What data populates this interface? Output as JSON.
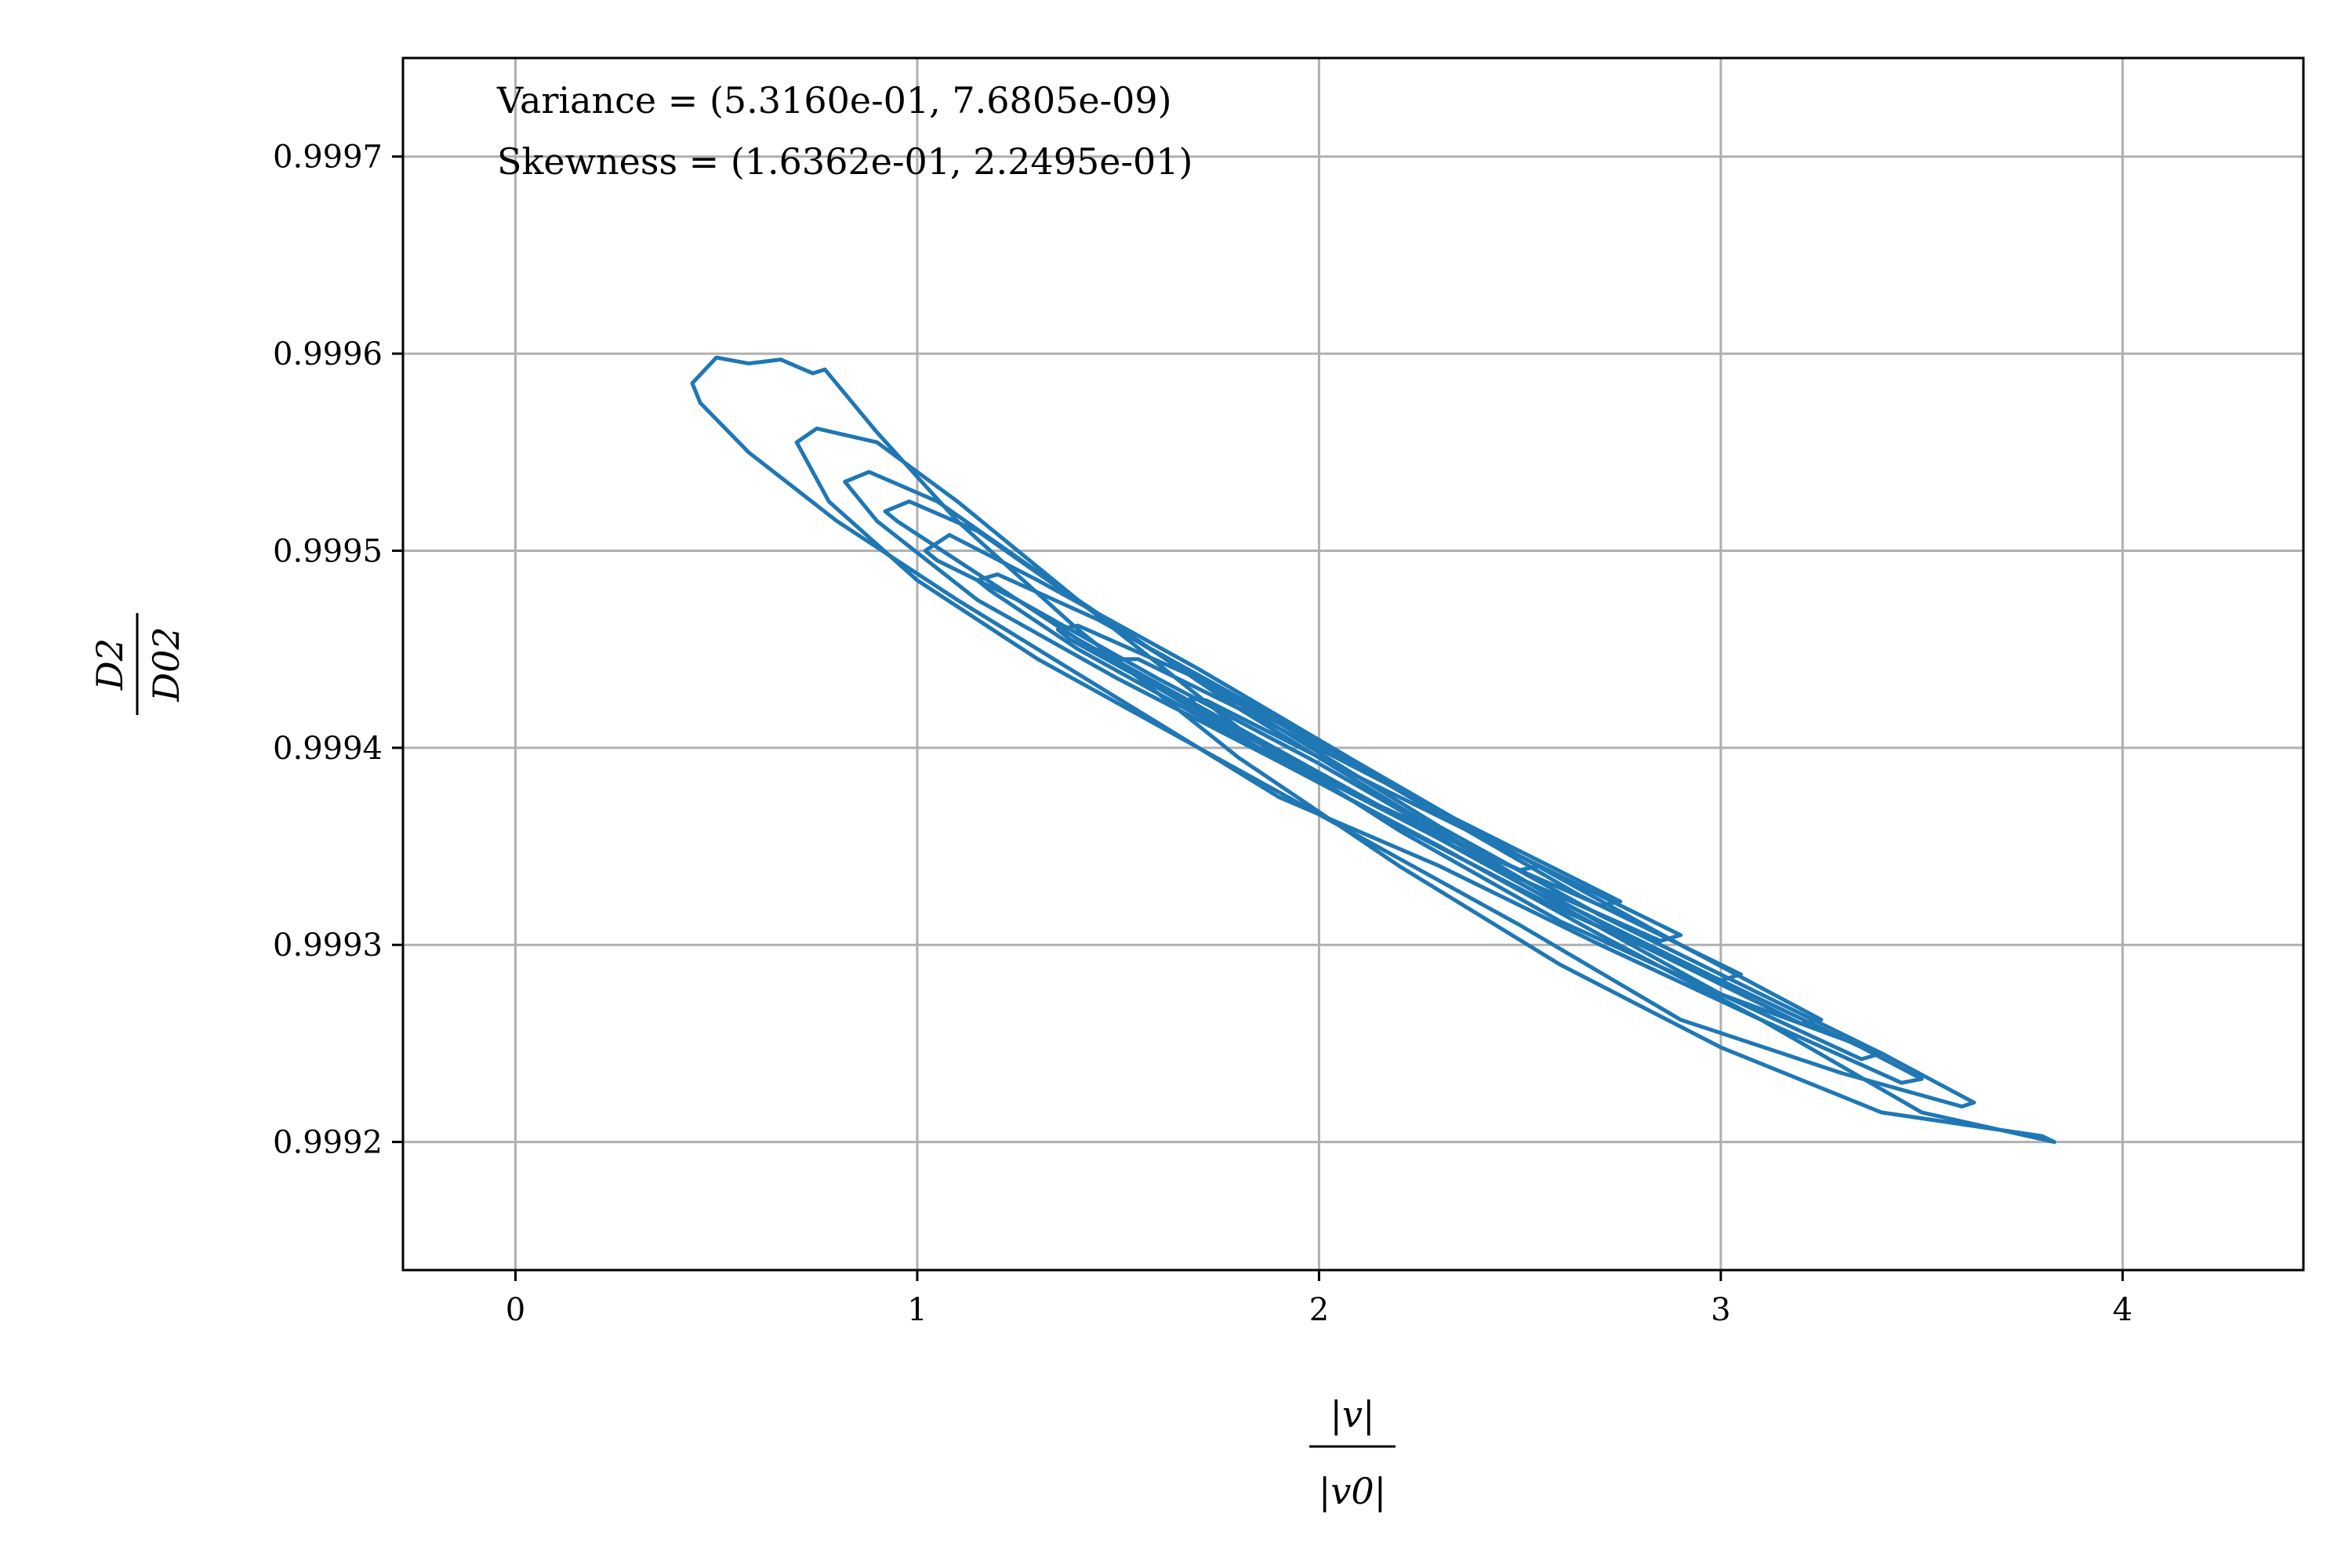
{
  "chart_data": {
    "type": "line",
    "subtype": "contour",
    "xlabel": {
      "numerator": "|v|",
      "denominator": "|v0|"
    },
    "ylabel": {
      "numerator": "D2",
      "denominator": "D02"
    },
    "xlim": [
      -0.28,
      4.45
    ],
    "ylim": [
      0.999135,
      0.99975
    ],
    "xticks": [
      0,
      1,
      2,
      3,
      4
    ],
    "xtick_labels": [
      "0",
      "1",
      "2",
      "3",
      "4"
    ],
    "yticks": [
      0.9992,
      0.9993,
      0.9994,
      0.9995,
      0.9996,
      0.9997
    ],
    "ytick_labels": [
      "0.9992",
      "0.9993",
      "0.9994",
      "0.9995",
      "0.9996",
      "0.9997"
    ],
    "grid": true,
    "annotations": [
      "Variance = (5.3160e-01, 7.6805e-09)",
      "Skewness = (1.6362e-01, 2.2495e-01)"
    ],
    "colors": {
      "series": "#1f77b4",
      "grid": "#b0b0b0",
      "frame": "#000000"
    },
    "series": [
      {
        "x": [
          0.44,
          0.5,
          0.58,
          0.66,
          0.74,
          0.77,
          0.9,
          1.1,
          1.4,
          1.8,
          2.2,
          2.6,
          3.0,
          3.4,
          3.8,
          3.83,
          3.5,
          3.1,
          2.7,
          2.3,
          1.9,
          1.5,
          1.1,
          0.8,
          0.58,
          0.46,
          0.44
        ],
        "y": [
          0.999585,
          0.999598,
          0.999595,
          0.999597,
          0.99959,
          0.999592,
          0.99956,
          0.999515,
          0.99946,
          0.999395,
          0.99934,
          0.99929,
          0.999248,
          0.999215,
          0.999203,
          0.9992,
          0.999215,
          0.999262,
          0.9993,
          0.99934,
          0.999375,
          0.999425,
          0.999475,
          0.999515,
          0.99955,
          0.999575,
          0.999585
        ]
      },
      {
        "x": [
          0.7,
          0.75,
          0.9,
          1.1,
          1.4,
          1.8,
          2.2,
          2.6,
          3.0,
          3.4,
          3.63,
          3.6,
          3.3,
          2.9,
          2.5,
          2.1,
          1.7,
          1.3,
          1.0,
          0.78,
          0.7
        ],
        "y": [
          0.999555,
          0.999562,
          0.999555,
          0.999525,
          0.999475,
          0.99941,
          0.999358,
          0.999312,
          0.999275,
          0.999245,
          0.99922,
          0.999218,
          0.999235,
          0.999262,
          0.99931,
          0.999355,
          0.9994,
          0.999445,
          0.999485,
          0.999525,
          0.999555
        ]
      },
      {
        "x": [
          0.82,
          0.88,
          1.05,
          1.4,
          1.8,
          2.2,
          2.6,
          3.0,
          3.35,
          3.5,
          3.45,
          3.1,
          2.7,
          2.3,
          1.9,
          1.5,
          1.15,
          0.9,
          0.82
        ],
        "y": [
          0.999535,
          0.99954,
          0.999525,
          0.999475,
          0.99942,
          0.99937,
          0.999322,
          0.999282,
          0.999248,
          0.999232,
          0.99923,
          0.999262,
          0.999305,
          0.99935,
          0.999393,
          0.999435,
          0.999475,
          0.999515,
          0.999535
        ]
      },
      {
        "x": [
          0.92,
          0.98,
          1.15,
          1.5,
          1.9,
          2.3,
          2.7,
          3.1,
          3.4,
          3.35,
          3.0,
          2.6,
          2.2,
          1.8,
          1.4,
          1.1,
          0.95,
          0.92
        ],
        "y": [
          0.99952,
          0.999525,
          0.99951,
          0.99946,
          0.99941,
          0.99936,
          0.999315,
          0.999275,
          0.999245,
          0.999242,
          0.999275,
          0.99932,
          0.999365,
          0.99941,
          0.999455,
          0.999495,
          0.999515,
          0.99952
        ]
      },
      {
        "x": [
          1.02,
          1.08,
          1.3,
          1.7,
          2.1,
          2.5,
          2.9,
          3.25,
          3.2,
          2.8,
          2.4,
          2.0,
          1.6,
          1.25,
          1.05,
          1.02
        ],
        "y": [
          0.9995,
          0.999508,
          0.999485,
          0.99944,
          0.999392,
          0.999345,
          0.9993,
          0.999262,
          0.99926,
          0.9993,
          0.999345,
          0.999392,
          0.999435,
          0.999475,
          0.999495,
          0.9995
        ]
      },
      {
        "x": [
          1.15,
          1.2,
          1.45,
          1.85,
          2.25,
          2.65,
          3.05,
          3.0,
          2.6,
          2.2,
          1.8,
          1.4,
          1.18,
          1.15
        ],
        "y": [
          0.999485,
          0.999488,
          0.999465,
          0.99942,
          0.999372,
          0.999325,
          0.999285,
          0.999282,
          0.999318,
          0.99936,
          0.999405,
          0.99945,
          0.99948,
          0.999485
        ]
      },
      {
        "x": [
          1.35,
          1.4,
          1.7,
          2.1,
          2.5,
          2.9,
          2.85,
          2.45,
          2.05,
          1.65,
          1.38,
          1.35
        ],
        "y": [
          0.99946,
          0.999462,
          0.999435,
          0.99939,
          0.999345,
          0.999305,
          0.999302,
          0.999338,
          0.99938,
          0.999425,
          0.999455,
          0.99946
        ]
      },
      {
        "x": [
          1.5,
          1.55,
          1.9,
          2.3,
          2.75,
          2.7,
          2.25,
          1.85,
          1.52,
          1.5
        ],
        "y": [
          0.999445,
          0.999445,
          0.99941,
          0.999368,
          0.999322,
          0.99932,
          0.99936,
          0.9994,
          0.99944,
          0.999445
        ]
      },
      {
        "x": [
          1.68,
          1.72,
          2.1,
          2.55,
          2.5,
          2.05,
          1.7,
          1.68
        ],
        "y": [
          0.999425,
          0.999424,
          0.999385,
          0.99934,
          0.999338,
          0.99938,
          0.99942,
          0.999425
        ]
      }
    ]
  }
}
